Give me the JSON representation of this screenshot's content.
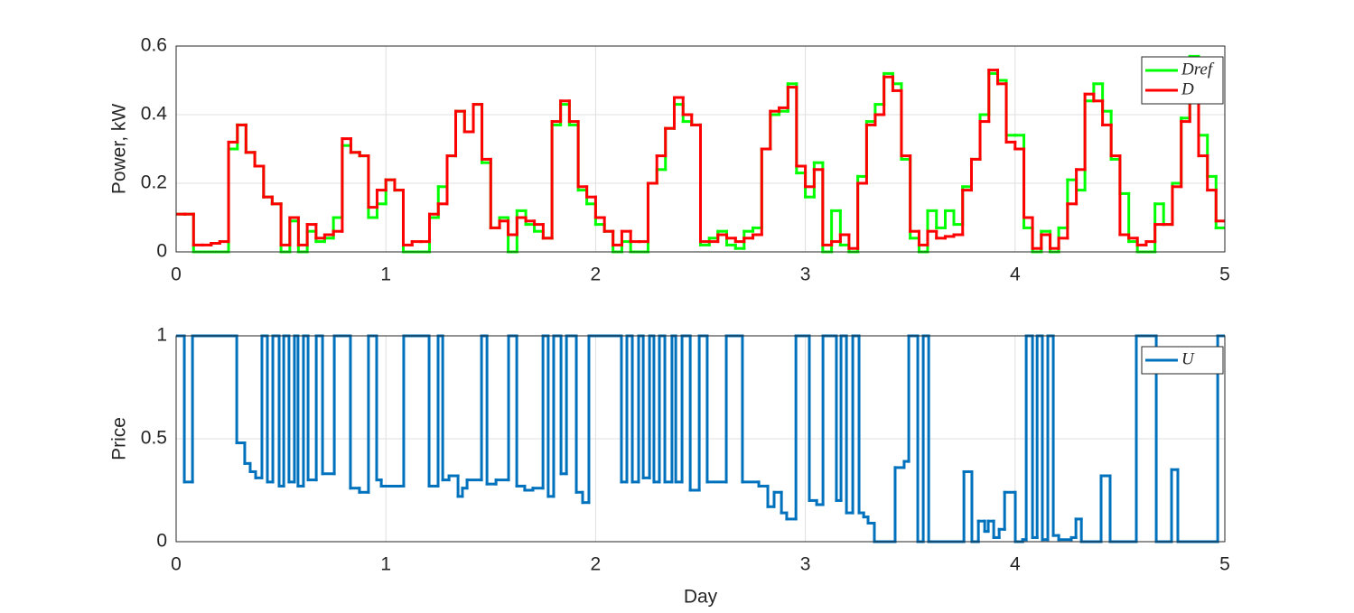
{
  "chart_data": [
    {
      "type": "line",
      "ylabel": "Power, kW",
      "xlim": [
        0,
        5
      ],
      "xticks": [
        0,
        1,
        2,
        3,
        4,
        5
      ],
      "ylim": [
        0,
        0.6
      ],
      "yticks": [
        0,
        0.2,
        0.4,
        0.6
      ],
      "grid": true,
      "legend": "northeast",
      "step": true,
      "x": [
        0,
        0.042,
        0.083,
        0.125,
        0.167,
        0.208,
        0.25,
        0.292,
        0.333,
        0.375,
        0.417,
        0.458,
        0.5,
        0.542,
        0.583,
        0.625,
        0.667,
        0.708,
        0.75,
        0.792,
        0.833,
        0.875,
        0.917,
        0.958,
        1,
        1.042,
        1.083,
        1.125,
        1.167,
        1.208,
        1.25,
        1.292,
        1.333,
        1.375,
        1.417,
        1.458,
        1.5,
        1.542,
        1.583,
        1.625,
        1.667,
        1.708,
        1.75,
        1.792,
        1.833,
        1.875,
        1.917,
        1.958,
        2,
        2.042,
        2.083,
        2.125,
        2.167,
        2.208,
        2.25,
        2.292,
        2.333,
        2.375,
        2.417,
        2.458,
        2.5,
        2.542,
        2.583,
        2.625,
        2.667,
        2.708,
        2.75,
        2.792,
        2.833,
        2.875,
        2.917,
        2.958,
        3,
        3.042,
        3.083,
        3.125,
        3.167,
        3.208,
        3.25,
        3.292,
        3.333,
        3.375,
        3.417,
        3.458,
        3.5,
        3.542,
        3.583,
        3.625,
        3.667,
        3.708,
        3.75,
        3.792,
        3.833,
        3.875,
        3.917,
        3.958,
        4,
        4.042,
        4.083,
        4.125,
        4.167,
        4.208,
        4.25,
        4.292,
        4.333,
        4.375,
        4.417,
        4.458,
        4.5,
        4.542,
        4.583,
        4.625,
        4.667,
        4.708,
        4.75,
        4.792,
        4.833,
        4.875,
        4.917,
        4.958,
        5
      ],
      "series": [
        {
          "name": "Dref",
          "color": "#00ff00",
          "values": [
            0.11,
            0.11,
            0,
            0,
            0,
            0,
            0.3,
            0.37,
            0.29,
            0.25,
            0.16,
            0.14,
            0,
            0.09,
            0,
            0.06,
            0.03,
            0.04,
            0.1,
            0.31,
            0.29,
            0.28,
            0.1,
            0.14,
            0.21,
            0.18,
            0,
            0,
            0,
            0.1,
            0.19,
            0.28,
            0.41,
            0.35,
            0.43,
            0.26,
            0.07,
            0.1,
            0,
            0.12,
            0.08,
            0.06,
            0.04,
            0.37,
            0.43,
            0.37,
            0.18,
            0.14,
            0.08,
            0.06,
            0,
            0.03,
            0,
            0,
            0.2,
            0.24,
            0.36,
            0.43,
            0.38,
            0.37,
            0.02,
            0.04,
            0.06,
            0.02,
            0.01,
            0.06,
            0.07,
            0.3,
            0.4,
            0.41,
            0.49,
            0.23,
            0.16,
            0.26,
            0,
            0.12,
            0.02,
            0,
            0.22,
            0.38,
            0.43,
            0.52,
            0.49,
            0.27,
            0.04,
            0,
            0.12,
            0.07,
            0.12,
            0.08,
            0.19,
            0.27,
            0.4,
            0.52,
            0.5,
            0.34,
            0.34,
            0.07,
            0,
            0.06,
            0,
            0.07,
            0.21,
            0.18,
            0.44,
            0.49,
            0.41,
            0.27,
            0.17,
            0.03,
            0,
            0,
            0.14,
            0.08,
            0.2,
            0.39,
            0.57,
            0.34,
            0.22,
            0.07,
            0.07
          ]
        },
        {
          "name": "D",
          "color": "#ff0000",
          "values": [
            0.11,
            0.11,
            0.02,
            0.02,
            0.025,
            0.03,
            0.32,
            0.37,
            0.29,
            0.25,
            0.16,
            0.14,
            0.02,
            0.1,
            0.02,
            0.08,
            0.04,
            0.05,
            0.06,
            0.33,
            0.29,
            0.28,
            0.13,
            0.18,
            0.21,
            0.18,
            0.02,
            0.03,
            0.03,
            0.11,
            0.14,
            0.28,
            0.41,
            0.35,
            0.43,
            0.27,
            0.07,
            0.09,
            0.05,
            0.1,
            0.09,
            0.08,
            0.04,
            0.38,
            0.44,
            0.38,
            0.19,
            0.16,
            0.1,
            0.06,
            0.02,
            0.06,
            0.03,
            0.03,
            0.2,
            0.28,
            0.36,
            0.45,
            0.4,
            0.37,
            0.03,
            0.03,
            0.05,
            0.04,
            0.03,
            0.04,
            0.05,
            0.3,
            0.41,
            0.42,
            0.48,
            0.25,
            0.19,
            0.24,
            0.02,
            0.03,
            0.05,
            0.01,
            0.2,
            0.37,
            0.4,
            0.51,
            0.47,
            0.28,
            0.06,
            0.02,
            0.06,
            0.04,
            0.045,
            0.05,
            0.18,
            0.27,
            0.38,
            0.53,
            0.49,
            0.32,
            0.3,
            0.1,
            0.01,
            0.05,
            0.01,
            0.04,
            0.14,
            0.24,
            0.46,
            0.44,
            0.37,
            0.28,
            0.05,
            0.04,
            0.02,
            0.03,
            0.08,
            0.08,
            0.19,
            0.38,
            0.53,
            0.28,
            0.18,
            0.09,
            0.09
          ]
        }
      ]
    },
    {
      "type": "line",
      "ylabel": "Price",
      "xlabel": "Day",
      "xlim": [
        0,
        5
      ],
      "xticks": [
        0,
        1,
        2,
        3,
        4,
        5
      ],
      "ylim": [
        0,
        1
      ],
      "yticks": [
        0,
        0.5,
        1
      ],
      "grid": true,
      "legend": "northeast",
      "step": true,
      "x": [
        0,
        0.039,
        0.078,
        0.289,
        0.327,
        0.353,
        0.379,
        0.409,
        0.435,
        0.461,
        0.491,
        0.513,
        0.538,
        0.564,
        0.581,
        0.607,
        0.629,
        0.668,
        0.698,
        0.754,
        0.831,
        0.874,
        0.917,
        0.956,
        0.978,
        1.085,
        1.206,
        1.249,
        1.271,
        1.301,
        1.344,
        1.365,
        1.387,
        1.456,
        1.482,
        1.525,
        1.585,
        1.624,
        1.662,
        1.701,
        1.749,
        1.774,
        1.8,
        1.835,
        1.861,
        1.908,
        1.938,
        1.968,
        2.123,
        2.149,
        2.175,
        2.205,
        2.227,
        2.257,
        2.278,
        2.304,
        2.33,
        2.364,
        2.382,
        2.412,
        2.451,
        2.494,
        2.532,
        2.623,
        2.7,
        2.778,
        2.821,
        2.851,
        2.886,
        2.911,
        2.955,
        3.019,
        3.054,
        3.084,
        3.148,
        3.17,
        3.196,
        3.226,
        3.256,
        3.278,
        3.299,
        3.329,
        3.428,
        3.471,
        3.493,
        3.536,
        3.562,
        3.588,
        3.756,
        3.794,
        3.825,
        3.855,
        3.872,
        3.898,
        3.924,
        3.95,
        4.001,
        4.036,
        4.053,
        4.083,
        4.105,
        4.13,
        4.156,
        4.182,
        4.208,
        4.268,
        4.29,
        4.316,
        4.41,
        4.453,
        4.578,
        4.673,
        4.746,
        4.776,
        4.966,
        5
      ],
      "series": [
        {
          "name": "U",
          "color": "#0072bd",
          "values": [
            1,
            0.29,
            1,
            0.48,
            0.38,
            0.34,
            0.31,
            1,
            0.29,
            1,
            0.27,
            1,
            0.29,
            1,
            0.27,
            1,
            0.3,
            1,
            0.33,
            1,
            0.26,
            0.24,
            1,
            0.3,
            0.27,
            1,
            0.27,
            1,
            0.3,
            0.32,
            0.22,
            0.26,
            0.3,
            1,
            0.28,
            0.3,
            1,
            0.27,
            0.25,
            0.26,
            1,
            0.22,
            1,
            0.33,
            1,
            0.24,
            0.19,
            1,
            0.29,
            1,
            0.29,
            1,
            0.31,
            1,
            0.29,
            1,
            0.29,
            1,
            0.29,
            1,
            0.25,
            1,
            0.29,
            1,
            0.29,
            0.27,
            0.17,
            0.24,
            0.14,
            0.11,
            1,
            0.2,
            0.18,
            1,
            0.2,
            1,
            0.14,
            1,
            0.14,
            0.12,
            0.09,
            0,
            0.36,
            0.39,
            1,
            0,
            1,
            0,
            0.34,
            0,
            0.1,
            0.05,
            0.1,
            0.02,
            0.06,
            0.24,
            0,
            0.01,
            1,
            0.02,
            1,
            0.01,
            1,
            0.03,
            0.01,
            0.02,
            0.11,
            0,
            0.32,
            0,
            1,
            0,
            0.35,
            0,
            1,
            1
          ]
        }
      ]
    }
  ]
}
